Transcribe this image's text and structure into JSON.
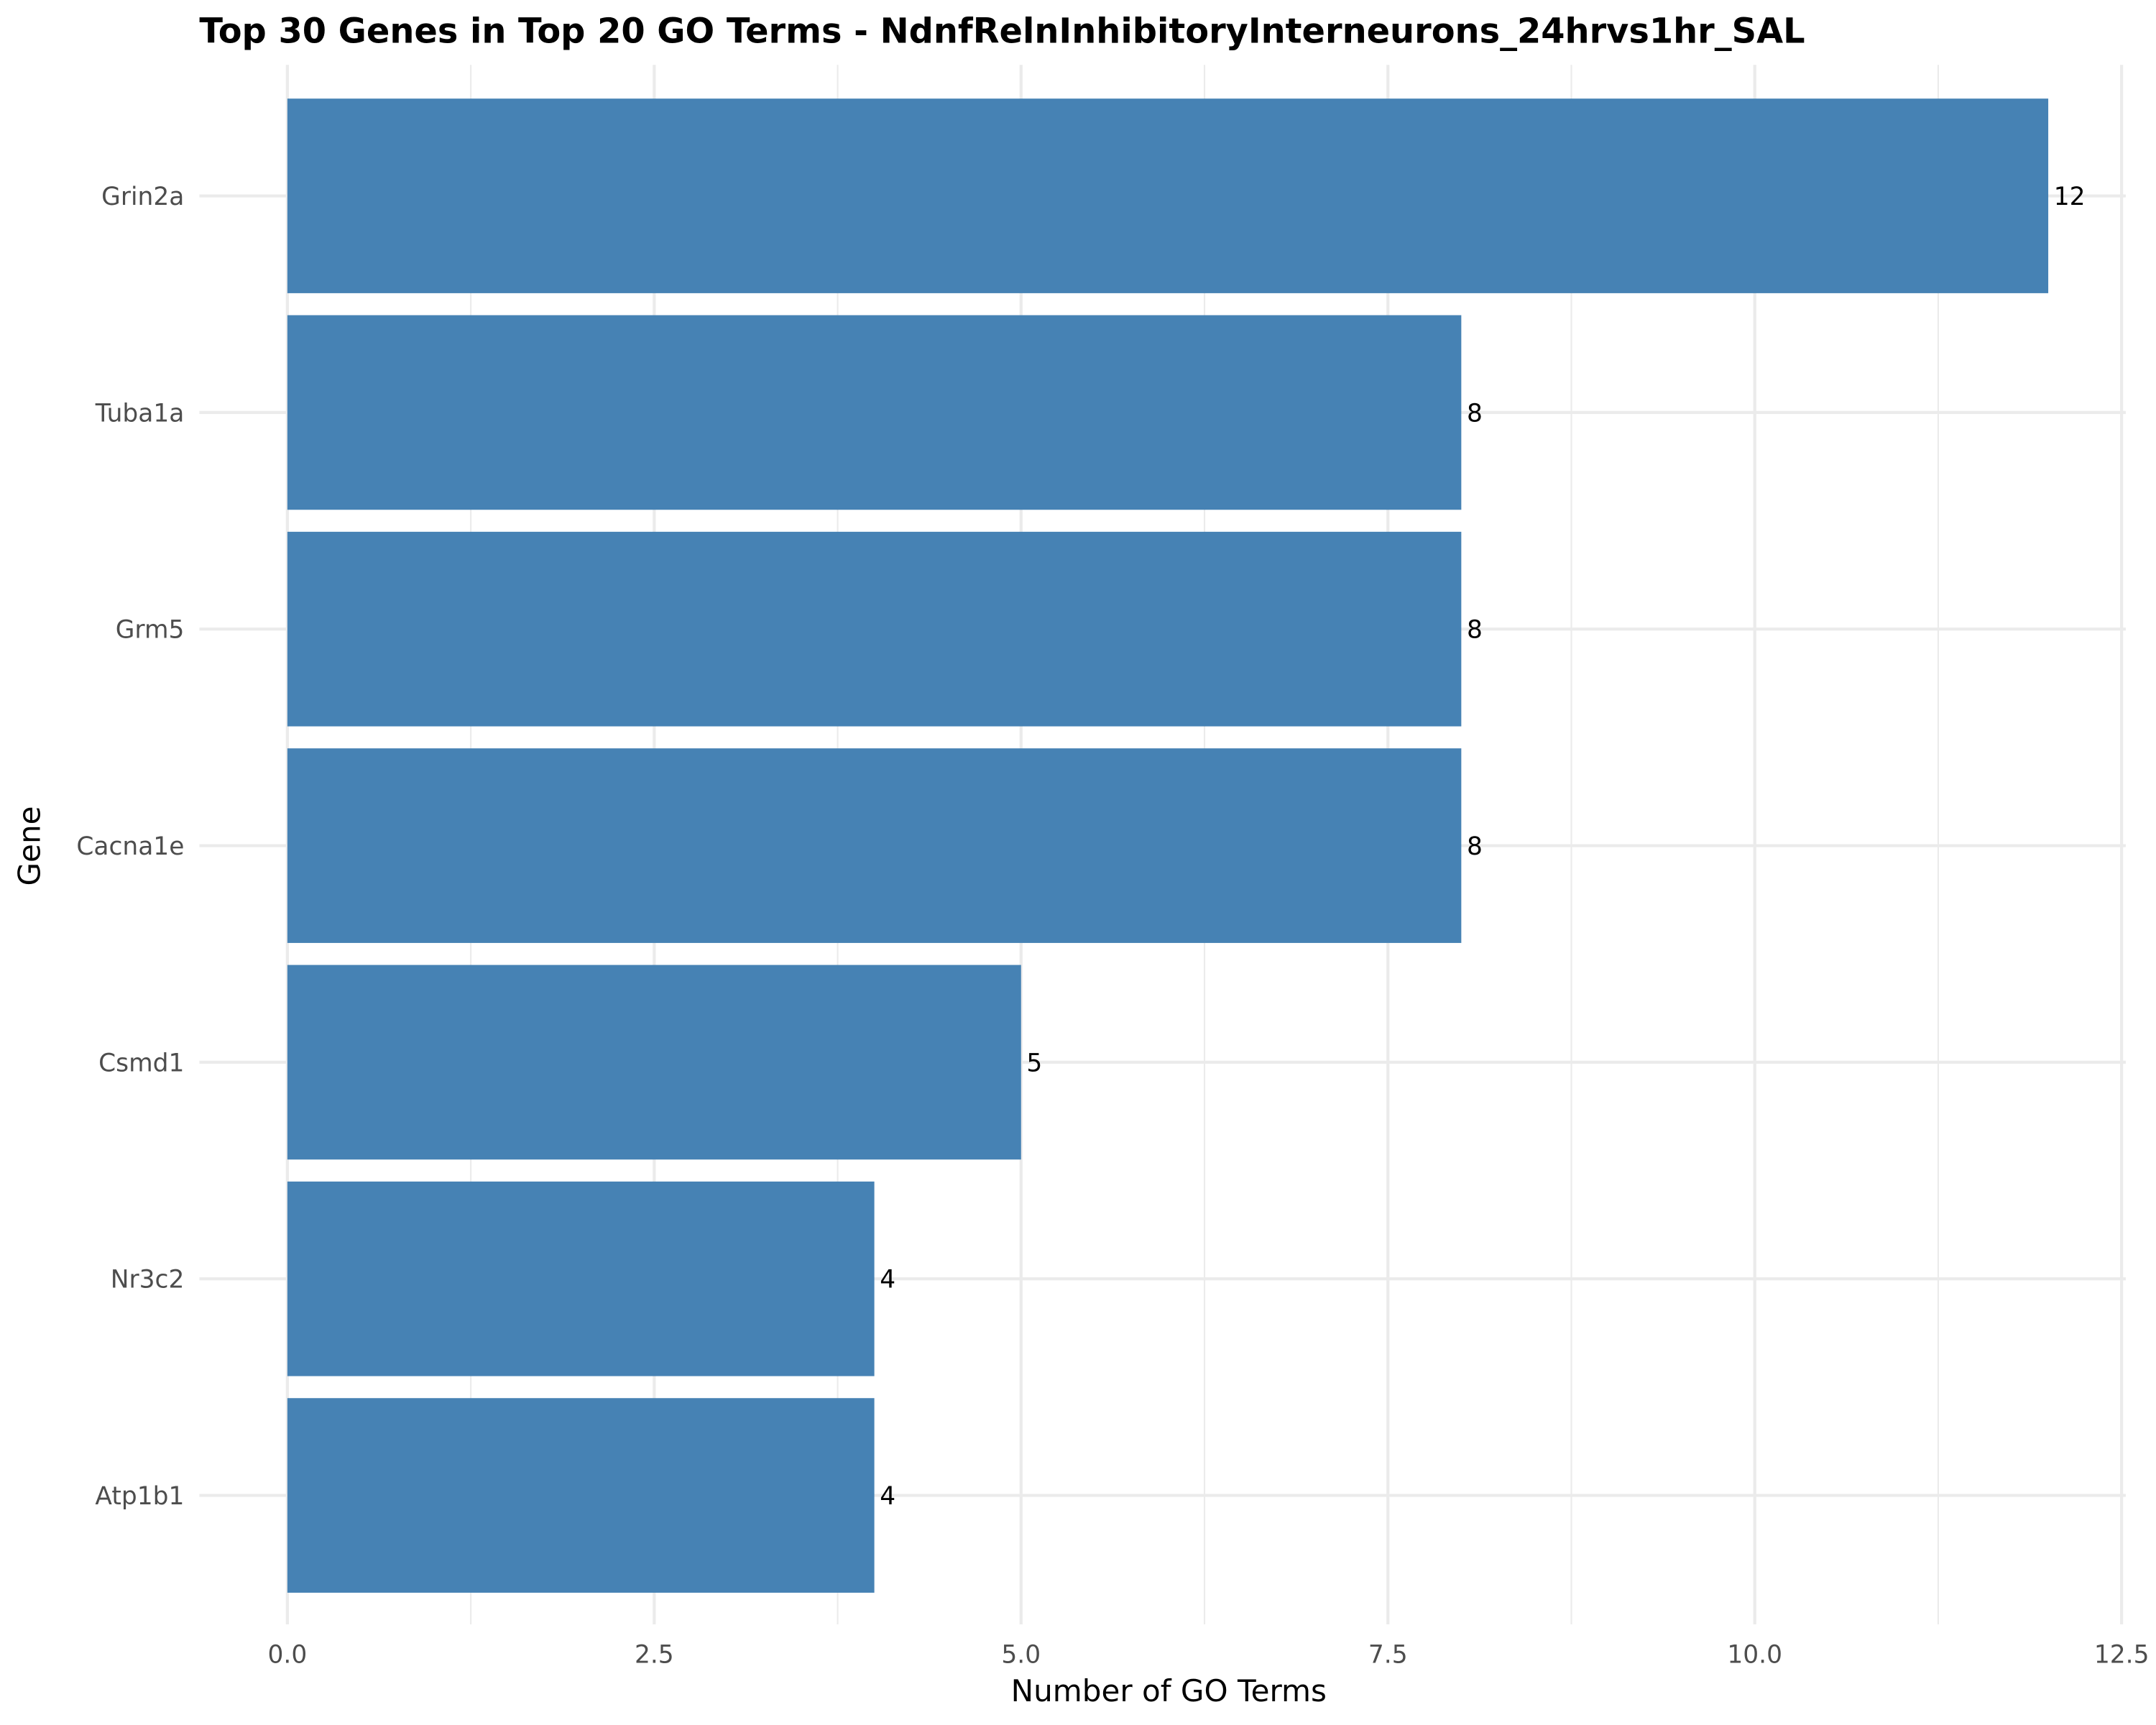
{
  "chart_data": {
    "type": "bar",
    "orientation": "horizontal",
    "title": "Top 30 Genes in Top 20 GO Terms - NdnfRelnInhibitoryInterneurons_24hrvs1hr_SAL",
    "xlabel": "Number of GO Terms",
    "ylabel": "Gene",
    "categories": [
      "Grin2a",
      "Tuba1a",
      "Grm5",
      "Cacna1e",
      "Csmd1",
      "Nr3c2",
      "Atp1b1"
    ],
    "values": [
      12,
      8,
      8,
      8,
      5,
      4,
      4
    ],
    "xlim": [
      0,
      12.5
    ],
    "xticks": [
      0,
      2.5,
      5,
      7.5,
      10,
      12.5
    ],
    "xtick_labels": [
      "0.0",
      "2.5",
      "5.0",
      "7.5",
      "10.0",
      "12.5"
    ],
    "bar_color": "#4682b4",
    "grid": true,
    "data_labels": true
  }
}
